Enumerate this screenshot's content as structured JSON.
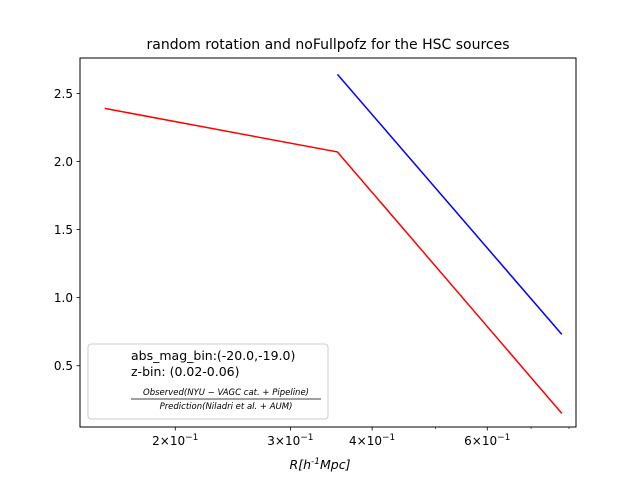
{
  "chart_data": {
    "type": "line",
    "title": "random rotation and noFullpofz for the HSC sources",
    "xlabel": "R[h^{-1}Mpc]",
    "ylabel": "",
    "xscale": "log",
    "xlim": [
      0.143,
      0.82
    ],
    "ylim": [
      0.05,
      2.76
    ],
    "x_ticks": [
      {
        "value": 0.2,
        "base": "2×10",
        "exp": "−1"
      },
      {
        "value": 0.3,
        "base": "3×10",
        "exp": "−1"
      },
      {
        "value": 0.4,
        "base": "4×10",
        "exp": "−1"
      },
      {
        "value": 0.6,
        "base": "6×10",
        "exp": "−1"
      }
    ],
    "x_minor_ticks": [
      0.5,
      0.7,
      0.8
    ],
    "y_ticks": [
      0.5,
      1.0,
      1.5,
      2.0,
      2.5
    ],
    "y_tick_labels": [
      "0.5",
      "1.0",
      "1.5",
      "2.0",
      "2.5"
    ],
    "grid": false,
    "legend_position": "lower-left",
    "series": [
      {
        "color": "#ff0000",
        "x": [
          0.156,
          0.354,
          0.78
        ],
        "y": [
          2.39,
          2.07,
          0.15
        ]
      },
      {
        "color": "#0000ff",
        "x": [
          0.354,
          0.78
        ],
        "y": [
          2.64,
          0.73
        ]
      }
    ],
    "legend": {
      "line1": "abs_mag_bin:(-20.0,-19.0)",
      "line2": "z-bin: (0.02-0.06)",
      "numerator": "Observed(NYU − VAGC cat. + Pipeline)",
      "denominator": "Prediction(Niladri et al. + AUM)"
    }
  }
}
